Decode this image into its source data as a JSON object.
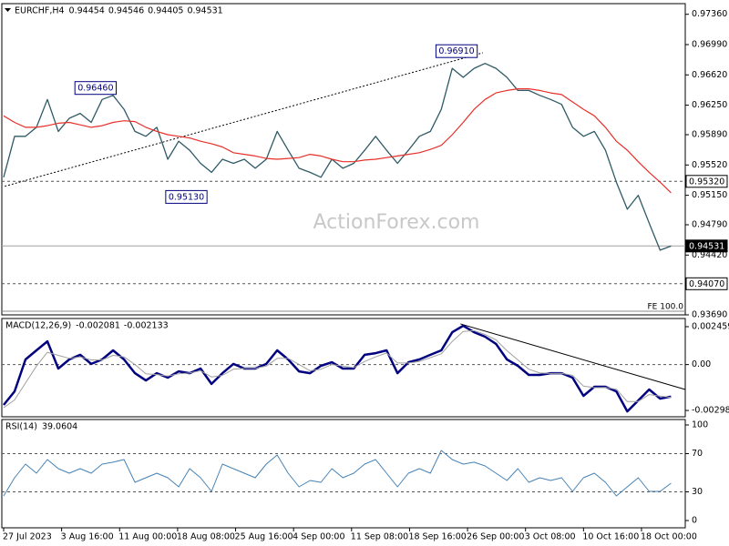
{
  "chart_data": [
    {
      "type": "line",
      "title": "EURCHF,H4",
      "header_values": [
        0.94454,
        0.94546,
        0.94405,
        0.94531
      ],
      "series": [
        {
          "color": "#2f5a66",
          "width": 1.3,
          "values": [
            0.9537,
            0.9587,
            0.9587,
            0.9598,
            0.9632,
            0.9593,
            0.9609,
            0.9615,
            0.9604,
            0.9632,
            0.9637,
            0.962,
            0.9593,
            0.9587,
            0.9598,
            0.9559,
            0.9581,
            0.957,
            0.9554,
            0.9543,
            0.9559,
            0.9554,
            0.9559,
            0.9548,
            0.9559,
            0.9593,
            0.957,
            0.9548,
            0.9543,
            0.9537,
            0.9559,
            0.9548,
            0.9554,
            0.957,
            0.9587,
            0.957,
            0.9554,
            0.957,
            0.9587,
            0.9593,
            0.962,
            0.967,
            0.9659,
            0.967,
            0.9676,
            0.967,
            0.9659,
            0.9643,
            0.9643,
            0.9637,
            0.9632,
            0.9626,
            0.9598,
            0.9587,
            0.9593,
            0.957,
            0.9531,
            0.9498,
            0.9515,
            0.9481,
            0.9448,
            0.9453
          ]
        },
        {
          "color": "#e8302a",
          "width": 1.2,
          "values": [
            0.9612,
            0.9604,
            0.9598,
            0.9598,
            0.96,
            0.9603,
            0.9604,
            0.9601,
            0.9598,
            0.96,
            0.9604,
            0.9606,
            0.9605,
            0.9598,
            0.9593,
            0.9589,
            0.9587,
            0.9585,
            0.9581,
            0.9578,
            0.9574,
            0.9567,
            0.9565,
            0.9563,
            0.956,
            0.9559,
            0.956,
            0.9561,
            0.9565,
            0.9563,
            0.9559,
            0.9556,
            0.9556,
            0.9558,
            0.9559,
            0.9561,
            0.9563,
            0.9565,
            0.9567,
            0.9571,
            0.9576,
            0.9589,
            0.9604,
            0.962,
            0.9632,
            0.964,
            0.9643,
            0.9645,
            0.9645,
            0.9643,
            0.964,
            0.9638,
            0.9629,
            0.962,
            0.9612,
            0.9598,
            0.9581,
            0.957,
            0.9556,
            0.9543,
            0.9531,
            0.9518
          ]
        }
      ],
      "ylim": [
        0.9369,
        0.9749
      ],
      "yticks": [
        {
          "value": 0.9736,
          "label": "0.97360"
        },
        {
          "value": 0.9699,
          "label": "0.96990"
        },
        {
          "value": 0.9662,
          "label": "0.96620"
        },
        {
          "value": 0.9625,
          "label": "0.96250"
        },
        {
          "value": 0.9589,
          "label": "0.95890"
        },
        {
          "value": 0.9552,
          "label": "0.95520"
        },
        {
          "value": 0.9515,
          "label": "0.95150"
        },
        {
          "value": 0.9479,
          "label": "0.94790"
        },
        {
          "value": 0.9442,
          "label": "0.94420"
        },
        {
          "value": 0.9369,
          "label": "0.93690"
        }
      ],
      "levels": [
        {
          "value": 0.9532,
          "label": "0.95320",
          "style": "dashed"
        },
        {
          "value": 0.9407,
          "label": "0.94070",
          "style": "dashed"
        },
        {
          "value": 0.94531,
          "label": "0.94531",
          "style": "current"
        }
      ],
      "annotations": [
        {
          "x": 8.4,
          "value": 0.9646,
          "label": "0.96460"
        },
        {
          "x": 16.7,
          "value": 0.9513,
          "label": "0.95130"
        },
        {
          "x": 41.4,
          "value": 0.9691,
          "label": "0.96910"
        }
      ],
      "trendlines": [
        {
          "x": [
            0.1,
            43.8
          ],
          "y": [
            0.9526,
            0.9689
          ],
          "style": "dashed"
        }
      ],
      "watermark": "ActionForex.com",
      "fe_label": "FE 100.0"
    },
    {
      "type": "line",
      "title": "MACD(12,26,9)",
      "header_values": [
        -0.002081,
        -0.002133
      ],
      "series": [
        {
          "color": "#000080",
          "width": 2.5,
          "values": [
            -0.00262,
            -0.00174,
            0.00033,
            0.00092,
            0.00151,
            -0.00026,
            0.00033,
            0.00063,
            4e-05,
            0.00033,
            0.00092,
            0.00033,
            -0.00056,
            -0.00103,
            -0.00056,
            -0.00085,
            -0.00044,
            -0.00056,
            -0.00026,
            -0.00126,
            -0.00056,
            4e-05,
            -0.00026,
            -0.00026,
            4e-05,
            0.00092,
            0.00033,
            -0.00044,
            -0.00056,
            -8e-05,
            0.00015,
            -0.00026,
            -0.00026,
            0.00063,
            0.00074,
            0.00092,
            -0.00056,
            0.00015,
            0.00033,
            0.00063,
            0.00092,
            0.0021,
            0.00252,
            0.0021,
            0.00181,
            0.00134,
            0.00033,
            -8e-05,
            -0.00067,
            -0.00067,
            -0.00056,
            -0.00056,
            -0.00085,
            -0.00203,
            -0.00144,
            -0.00144,
            -0.00174,
            -0.00304,
            -0.00233,
            -0.00162,
            -0.00221,
            -0.00208
          ]
        },
        {
          "color": "#a0a0a0",
          "width": 1,
          "values": [
            -0.0028,
            -0.0023,
            -0.0012,
            -0.0001,
            0.0008,
            0.0006,
            0.0004,
            0.0005,
            0.0003,
            0.0003,
            0.0006,
            0.0005,
            0.0,
            -0.0006,
            -0.00065,
            -0.00075,
            -0.0006,
            -0.00055,
            -0.0004,
            -0.0008,
            -0.0007,
            -0.0003,
            -0.00025,
            -0.00025,
            -0.0001,
            0.0004,
            0.0004,
            0.0,
            -0.0004,
            -0.0003,
            0.0,
            -0.0001,
            -0.0002,
            0.0002,
            0.0005,
            0.00075,
            0.0001,
            0.0001,
            0.0002,
            0.00045,
            0.0007,
            0.0015,
            0.00215,
            0.0022,
            0.00195,
            0.0016,
            0.0009,
            0.0003,
            -0.0003,
            -0.00055,
            -0.00058,
            -0.00057,
            -0.0007,
            -0.0014,
            -0.0015,
            -0.00148,
            -0.0016,
            -0.0024,
            -0.0024,
            -0.00195,
            -0.00205,
            -0.00213
          ]
        }
      ],
      "ylim": [
        -0.00339,
        0.00299
      ],
      "yticks": [
        0.002459,
        {
          "value": 0,
          "label": "0.00"
        },
        -0.00298
      ],
      "levels": [
        {
          "value": 0,
          "style": "dashed"
        }
      ],
      "trendlines": [
        {
          "x": [
            41.75,
            62.3
          ],
          "y": [
            0.00264,
            -0.00162
          ],
          "style": "solid"
        }
      ]
    },
    {
      "type": "line",
      "title": "RSI(14)",
      "header_values": [
        39.0604
      ],
      "series": [
        {
          "color": "#4682b4",
          "width": 1,
          "values": [
            25.7,
            44.8,
            59.0,
            49.5,
            63.8,
            54.3,
            49.5,
            54.3,
            49.5,
            59.0,
            61.0,
            63.8,
            40.0,
            44.8,
            49.5,
            44.8,
            35.2,
            54.3,
            44.8,
            30.5,
            59.0,
            54.3,
            49.5,
            44.8,
            59.0,
            68.6,
            49.5,
            35.2,
            41.9,
            40.0,
            54.3,
            44.8,
            49.5,
            59.0,
            63.8,
            49.5,
            35.2,
            49.5,
            54.3,
            49.5,
            73.3,
            63.8,
            59.0,
            61.0,
            57.1,
            49.5,
            41.9,
            54.3,
            40.0,
            44.8,
            41.9,
            44.8,
            30.5,
            44.8,
            49.5,
            40.0,
            25.7,
            35.2,
            44.8,
            30.5,
            30.5,
            39.1
          ]
        }
      ],
      "ylim": [
        -7.6,
        105.7
      ],
      "yticks": [
        100,
        70,
        30,
        0
      ],
      "levels": [
        {
          "value": 70,
          "style": "dashed"
        },
        {
          "value": 30,
          "style": "dashed"
        }
      ],
      "xlim": [
        0,
        62.3
      ],
      "xticks": [
        {
          "value": 0,
          "label": "27 Jul 2023"
        },
        {
          "value": 5.3,
          "label": "3 Aug 16:00"
        },
        {
          "value": 10.6,
          "label": "11 Aug 00:00"
        },
        {
          "value": 15.9,
          "label": "18 Aug 08:00"
        },
        {
          "value": 21.2,
          "label": "25 Aug 16:00"
        },
        {
          "value": 26.5,
          "label": "4 Sep 00:00"
        },
        {
          "value": 31.8,
          "label": "11 Sep 08:00"
        },
        {
          "value": 37.1,
          "label": "18 Sep 16:00"
        },
        {
          "value": 42.4,
          "label": "26 Sep 00:00"
        },
        {
          "value": 47.7,
          "label": "3 Oct 08:00"
        },
        {
          "value": 53.0,
          "label": "10 Oct 16:00"
        },
        {
          "value": 58.3,
          "label": "18 Oct 00:00"
        }
      ]
    }
  ]
}
